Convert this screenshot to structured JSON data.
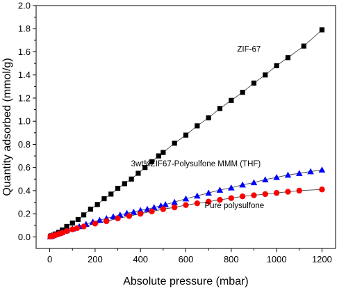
{
  "chart_data": {
    "type": "scatter",
    "title": "",
    "xlabel": "Absolute pressure (mbar)",
    "ylabel": "Quantity adsorbed (mmol/g)",
    "xlim": [
      -60,
      1260
    ],
    "ylim": [
      -0.1,
      2.0
    ],
    "xticks": [
      0,
      200,
      400,
      600,
      800,
      1000,
      1200
    ],
    "yticks": [
      0.0,
      0.2,
      0.4,
      0.6,
      0.8,
      1.0,
      1.2,
      1.4,
      1.6,
      1.8,
      2.0
    ],
    "grid": false,
    "legend": "none (series labeled inline)",
    "series": [
      {
        "name": "ZIF-67",
        "marker": "square",
        "color": "#000000",
        "x": [
          3,
          8,
          15,
          25,
          40,
          55,
          75,
          100,
          125,
          150,
          180,
          210,
          240,
          270,
          300,
          330,
          360,
          390,
          420,
          450,
          480,
          500,
          550,
          600,
          650,
          700,
          750,
          800,
          850,
          900,
          950,
          1000,
          1050,
          1120,
          1200
        ],
        "y": [
          0.005,
          0.01,
          0.015,
          0.025,
          0.04,
          0.06,
          0.09,
          0.12,
          0.15,
          0.19,
          0.24,
          0.28,
          0.33,
          0.37,
          0.42,
          0.46,
          0.5,
          0.55,
          0.6,
          0.65,
          0.7,
          0.73,
          0.81,
          0.88,
          0.96,
          1.03,
          1.11,
          1.18,
          1.25,
          1.33,
          1.4,
          1.48,
          1.55,
          1.65,
          1.79
        ]
      },
      {
        "name": "3wt%ZIF67-Polysulfone MMM (THF)",
        "marker": "triangle",
        "color": "#0000ff",
        "x": [
          3,
          8,
          15,
          25,
          40,
          55,
          75,
          100,
          130,
          160,
          190,
          220,
          250,
          280,
          310,
          340,
          370,
          400,
          430,
          460,
          490,
          510,
          550,
          600,
          650,
          700,
          750,
          800,
          850,
          900,
          950,
          1000,
          1050,
          1100,
          1150,
          1200
        ],
        "y": [
          0.003,
          0.008,
          0.012,
          0.02,
          0.03,
          0.04,
          0.055,
          0.07,
          0.09,
          0.11,
          0.13,
          0.145,
          0.16,
          0.175,
          0.19,
          0.205,
          0.215,
          0.23,
          0.24,
          0.255,
          0.27,
          0.28,
          0.3,
          0.33,
          0.355,
          0.38,
          0.405,
          0.425,
          0.45,
          0.47,
          0.495,
          0.515,
          0.535,
          0.55,
          0.565,
          0.58
        ]
      },
      {
        "name": "Pure polysulfone",
        "marker": "circle",
        "color": "#ff0000",
        "x": [
          3,
          8,
          15,
          25,
          40,
          55,
          75,
          100,
          120,
          150,
          200,
          250,
          300,
          350,
          400,
          450,
          500,
          550,
          600,
          650,
          700,
          750,
          800,
          850,
          900,
          950,
          1000,
          1050,
          1100,
          1200
        ],
        "y": [
          0.003,
          0.006,
          0.01,
          0.016,
          0.025,
          0.035,
          0.05,
          0.065,
          0.075,
          0.09,
          0.115,
          0.135,
          0.16,
          0.18,
          0.2,
          0.22,
          0.24,
          0.255,
          0.275,
          0.29,
          0.305,
          0.32,
          0.335,
          0.35,
          0.36,
          0.37,
          0.38,
          0.39,
          0.4,
          0.41
        ]
      }
    ],
    "annotations": [
      {
        "text": "ZIF-67",
        "x": 930,
        "y": 1.6
      },
      {
        "text": "3wt%ZIF67-Polysulfone MMM (THF)",
        "x": 930,
        "y": 0.61
      },
      {
        "text": "Pure polysulfone",
        "x": 945,
        "y": 0.25
      }
    ]
  }
}
